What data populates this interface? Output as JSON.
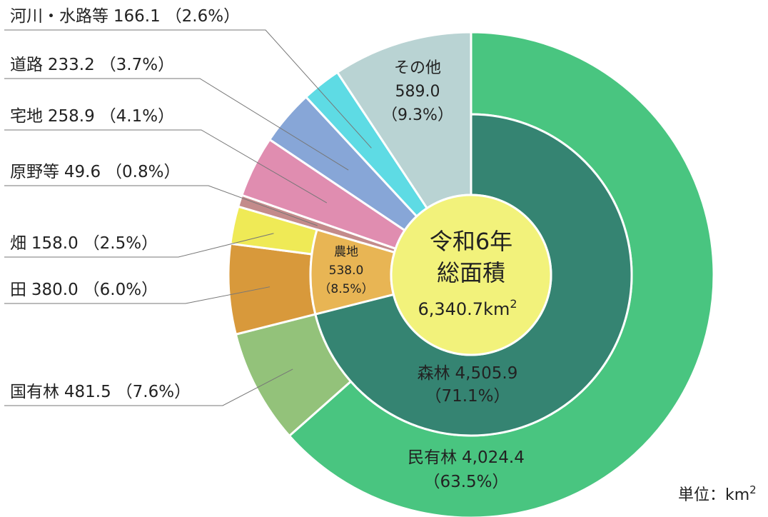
{
  "chart_data": {
    "type": "nested-donut",
    "center_lines": [
      "令和6年",
      "総面積"
    ],
    "total_label": "6,340.7km",
    "unit_label": "単位：km",
    "superscript": "2",
    "outer": {
      "labels": [
        "民有林",
        "国有林",
        "田",
        "畑",
        "原野等",
        "宅地",
        "道路",
        "河川・水路等",
        "その他"
      ],
      "values": [
        4024.4,
        481.5,
        380.0,
        158.0,
        49.6,
        258.9,
        233.2,
        166.1,
        589.0
      ],
      "value_labels": [
        "4,024.4",
        "481.5",
        "380.0",
        "158.0",
        "49.6",
        "258.9",
        "233.2",
        "166.1",
        "589.0"
      ],
      "share_labels": [
        "（63.5%）",
        "（7.6%）",
        "（6.0%）",
        "（2.5%）",
        "（0.8%）",
        "（4.1%）",
        "（3.7%）",
        "（2.6%）",
        "（9.3%）"
      ],
      "colors": [
        "#49c580",
        "#93c27a",
        "#d8993b",
        "#efea56",
        "#c38b8b",
        "#e08db0",
        "#87a6d7",
        "#5edbe4",
        "#b9d3d3"
      ]
    },
    "inner": {
      "labels": [
        "森林",
        "農地"
      ],
      "values": [
        4505.9,
        538.0
      ],
      "value_labels": [
        "4,505.9",
        "538.0"
      ],
      "share_labels": [
        "（71.1%）",
        "（8.5%）"
      ],
      "colors": [
        "#358472",
        "#e8b554"
      ]
    }
  }
}
